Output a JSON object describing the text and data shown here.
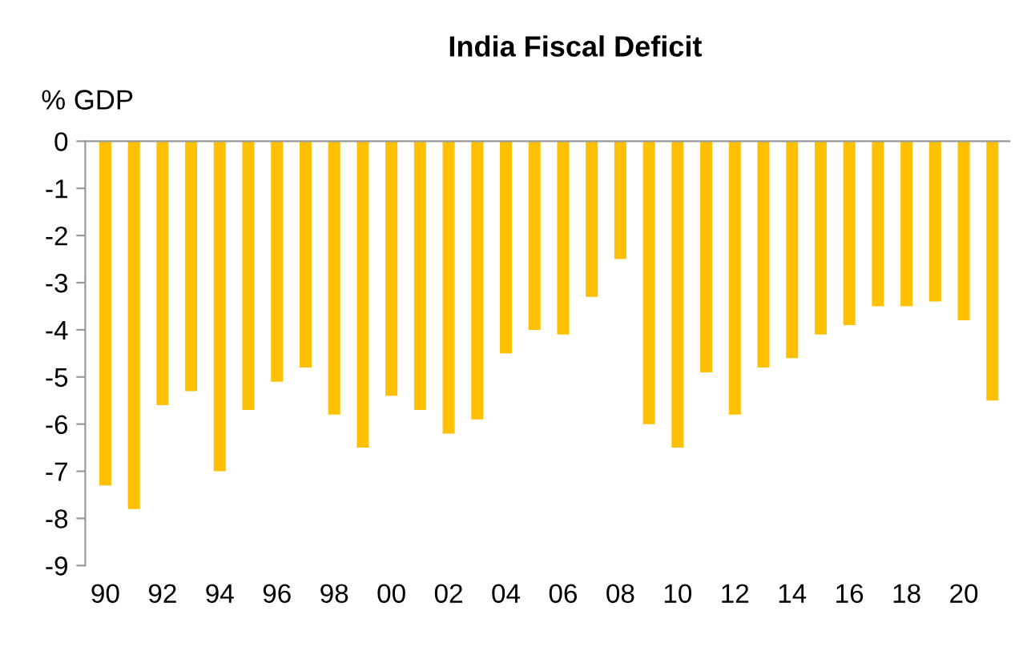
{
  "chart_data": {
    "type": "bar",
    "title": "India Fiscal Deficit",
    "ylabel": "% GDP",
    "categories": [
      "90",
      null,
      "92",
      null,
      "94",
      null,
      "96",
      null,
      "98",
      null,
      "00",
      null,
      "02",
      null,
      "04",
      null,
      "06",
      null,
      "08",
      null,
      "10",
      null,
      "12",
      null,
      "14",
      null,
      "16",
      null,
      "18",
      null,
      "20",
      null
    ],
    "values": [
      -7.3,
      -7.8,
      -5.6,
      -5.3,
      -7.0,
      -5.7,
      -5.1,
      -4.8,
      -5.8,
      -6.5,
      -5.4,
      -5.7,
      -6.2,
      -5.9,
      -4.5,
      -4.0,
      -4.1,
      -3.3,
      -2.5,
      -6.0,
      -6.5,
      -4.9,
      -5.8,
      -4.8,
      -4.6,
      -4.1,
      -3.9,
      -3.5,
      -3.5,
      -3.4,
      -3.8,
      -5.5
    ],
    "color": "#ffc000",
    "ylim": [
      -9,
      0
    ],
    "yticks": [
      0,
      -1,
      -2,
      -3,
      -4,
      -5,
      -6,
      -7,
      -8,
      -9
    ],
    "grid": false
  }
}
